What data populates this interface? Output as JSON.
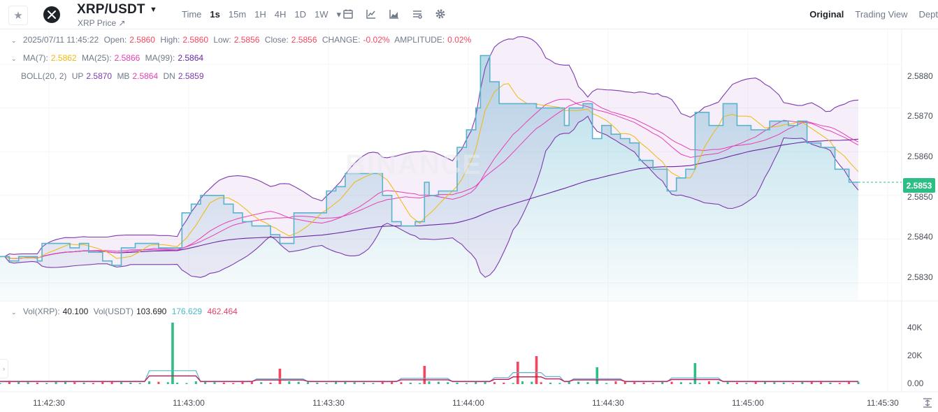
{
  "header": {
    "pair": "XRP/USDT",
    "subtitle": "XRP Price ↗",
    "intervals": [
      "Time",
      "1s",
      "15m",
      "1H",
      "4H",
      "1D",
      "1W"
    ],
    "active_interval": "1s",
    "interval_more": "▾",
    "views": [
      "Original",
      "Trading View",
      "Dept"
    ],
    "active_view": "Original"
  },
  "ohlc": {
    "datetime": "2025/07/11 11:45:22",
    "open_label": "Open:",
    "open": "2.5860",
    "high_label": "High:",
    "high": "2.5860",
    "low_label": "Low:",
    "low": "2.5856",
    "close_label": "Close:",
    "close": "2.5856",
    "change_label": "CHANGE:",
    "change": "-0.02%",
    "amplitude_label": "AMPLITUDE:",
    "amplitude": "0.02%"
  },
  "ma": {
    "ma7_label": "MA(7):",
    "ma7": "2.5862",
    "ma25_label": "MA(25):",
    "ma25": "2.5866",
    "ma99_label": "MA(99):",
    "ma99": "2.5864"
  },
  "boll": {
    "label": "BOLL(20, 2)",
    "up_label": "UP",
    "up": "2.5870",
    "mb_label": "MB",
    "mb": "2.5864",
    "dn_label": "DN",
    "dn": "2.5859"
  },
  "volume": {
    "vol_xrp_label": "Vol(XRP):",
    "vol_xrp": "40.100",
    "vol_usdt_label": "Vol(USDT)",
    "vol_usdt": "103.690",
    "ma_a": "176.629",
    "ma_b": "462.464"
  },
  "price_axis": [
    "2.5880",
    "2.5870",
    "2.5860",
    "2.5850",
    "2.5840",
    "2.5830"
  ],
  "current_price": "2.5853",
  "volume_axis": [
    "40K",
    "20K",
    "0.00"
  ],
  "time_axis": [
    "11:42:30",
    "11:43:00",
    "11:43:30",
    "11:44:00",
    "11:44:30",
    "11:45:00",
    "11:45:30"
  ],
  "watermark": "BINANCE",
  "colors": {
    "up": "#2ebd85",
    "down": "#f6465d",
    "line": "#5ab3cd",
    "ma7": "#f0b90b",
    "ma25": "#e63eb5",
    "ma99": "#6a26a6",
    "boll": "#7e3ab0"
  },
  "chart_data": {
    "type": "line",
    "ylim": [
      2.5826,
      2.5888
    ],
    "x_start": "11:42:18",
    "x_end": "11:45:22",
    "price": [
      [
        "11:42:18",
        2.5836
      ],
      [
        "11:42:20",
        2.5835
      ],
      [
        "11:42:22",
        2.5836
      ],
      [
        "11:42:25",
        2.5836
      ],
      [
        "11:42:26",
        2.5835
      ],
      [
        "11:42:27",
        2.5839
      ],
      [
        "11:42:31",
        2.5839
      ],
      [
        "11:42:33",
        2.5838
      ],
      [
        "11:42:35",
        2.5839
      ],
      [
        "11:42:37",
        2.5837
      ],
      [
        "11:42:40",
        2.5835
      ],
      [
        "11:42:42",
        2.5834
      ],
      [
        "11:42:44",
        2.5838
      ],
      [
        "11:42:47",
        2.5839
      ],
      [
        "11:42:50",
        2.5839
      ],
      [
        "11:42:52",
        2.5838
      ],
      [
        "11:42:55",
        2.5838
      ],
      [
        "11:42:57",
        2.5846
      ],
      [
        "11:42:59",
        2.5848
      ],
      [
        "11:43:01",
        2.585
      ],
      [
        "11:43:04",
        2.585
      ],
      [
        "11:43:06",
        2.5848
      ],
      [
        "11:43:08",
        2.5846
      ],
      [
        "11:43:10",
        2.5844
      ],
      [
        "11:43:12",
        2.5843
      ],
      [
        "11:43:14",
        2.5843
      ],
      [
        "11:43:16",
        2.5841
      ],
      [
        "11:43:18",
        2.5839
      ],
      [
        "11:43:20",
        2.5839
      ],
      [
        "11:43:21",
        2.5846
      ],
      [
        "11:43:26",
        2.5846
      ],
      [
        "11:43:28",
        2.5851
      ],
      [
        "11:43:30",
        2.5852
      ],
      [
        "11:43:32",
        2.5855
      ],
      [
        "11:43:35",
        2.5855
      ],
      [
        "11:43:37",
        2.5855
      ],
      [
        "11:43:40",
        2.585
      ],
      [
        "11:43:42",
        2.5844
      ],
      [
        "11:43:44",
        2.5843
      ],
      [
        "11:43:47",
        2.5844
      ],
      [
        "11:43:49",
        2.5853
      ],
      [
        "11:43:50",
        2.585
      ],
      [
        "11:43:52",
        2.5851
      ],
      [
        "11:43:55",
        2.5851
      ],
      [
        "11:43:56",
        2.5861
      ],
      [
        "11:43:58",
        2.5865
      ],
      [
        "11:44:00",
        2.587
      ],
      [
        "11:44:01",
        2.5882
      ],
      [
        "11:44:03",
        2.5876
      ],
      [
        "11:44:05",
        2.5871
      ],
      [
        "11:44:08",
        2.5871
      ],
      [
        "11:44:11",
        2.5871
      ],
      [
        "11:44:13",
        2.587
      ],
      [
        "11:44:17",
        2.587
      ],
      [
        "11:44:19",
        2.5866
      ],
      [
        "11:44:20",
        2.587
      ],
      [
        "11:44:23",
        2.5871
      ],
      [
        "11:44:25",
        2.5863
      ],
      [
        "11:44:27",
        2.5866
      ],
      [
        "11:44:29",
        2.5864
      ],
      [
        "11:44:31",
        2.5863
      ],
      [
        "11:44:33",
        2.5862
      ],
      [
        "11:44:35",
        2.5858
      ],
      [
        "11:44:38",
        2.5856
      ],
      [
        "11:44:41",
        2.5851
      ],
      [
        "11:44:43",
        2.5854
      ],
      [
        "11:44:45",
        2.5856
      ],
      [
        "11:44:47",
        2.5869
      ],
      [
        "11:44:50",
        2.5866
      ],
      [
        "11:44:53",
        2.5871
      ],
      [
        "11:44:56",
        2.5866
      ],
      [
        "11:44:59",
        2.5865
      ],
      [
        "11:45:03",
        2.5867
      ],
      [
        "11:45:07",
        2.5866
      ],
      [
        "11:45:09",
        2.5867
      ],
      [
        "11:45:11",
        2.5862
      ],
      [
        "11:45:14",
        2.5861
      ],
      [
        "11:45:17",
        2.5856
      ],
      [
        "11:45:20",
        2.5853
      ]
    ],
    "volume_peaks": [
      [
        "11:42:55",
        44000
      ],
      [
        "11:44:13",
        20000
      ],
      [
        "11:44:09",
        16000
      ],
      [
        "11:44:26",
        12000
      ],
      [
        "11:44:47",
        15000
      ],
      [
        "11:43:18",
        11000
      ],
      [
        "11:43:49",
        13000
      ]
    ]
  }
}
